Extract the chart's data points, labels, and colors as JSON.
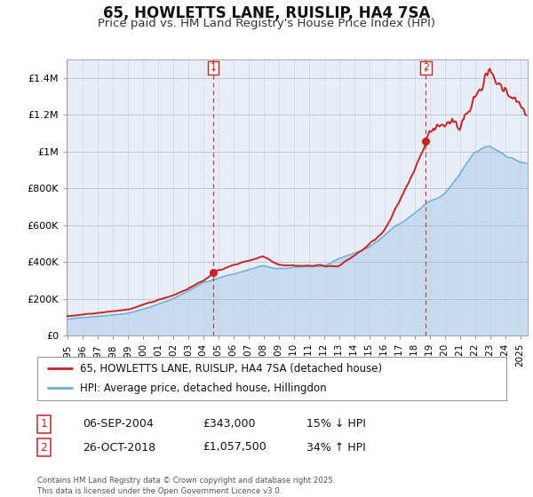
{
  "title": "65, HOWLETTS LANE, RUISLIP, HA4 7SA",
  "subtitle": "Price paid vs. HM Land Registry's House Price Index (HPI)",
  "ylim": [
    0,
    1500000
  ],
  "yticks": [
    0,
    200000,
    400000,
    600000,
    800000,
    1000000,
    1200000,
    1400000
  ],
  "ytick_labels": [
    "£0",
    "£200K",
    "£400K",
    "£600K",
    "£800K",
    "£1M",
    "£1.2M",
    "£1.4M"
  ],
  "hpi_color": "#6baed6",
  "hpi_fill_color": "#c6dbef",
  "price_color": "#cc2222",
  "plot_bg_color": "#e8eef8",
  "fig_bg_color": "#ffffff",
  "marker1_date_idx": 116,
  "marker2_date_idx": 285,
  "marker1_date": "06-SEP-2004",
  "marker1_price": "£343,000",
  "marker1_hpi": "15% ↓ HPI",
  "marker2_date": "26-OCT-2018",
  "marker2_price": "£1,057,500",
  "marker2_hpi": "34% ↑ HPI",
  "legend_line1": "65, HOWLETTS LANE, RUISLIP, HA4 7SA (detached house)",
  "legend_line2": "HPI: Average price, detached house, Hillingdon",
  "footer": "Contains HM Land Registry data © Crown copyright and database right 2025.\nThis data is licensed under the Open Government Licence v3.0.",
  "title_fontsize": 12,
  "subtitle_fontsize": 9.5,
  "tick_fontsize": 8,
  "legend_fontsize": 8.5,
  "annot_fontsize": 9
}
